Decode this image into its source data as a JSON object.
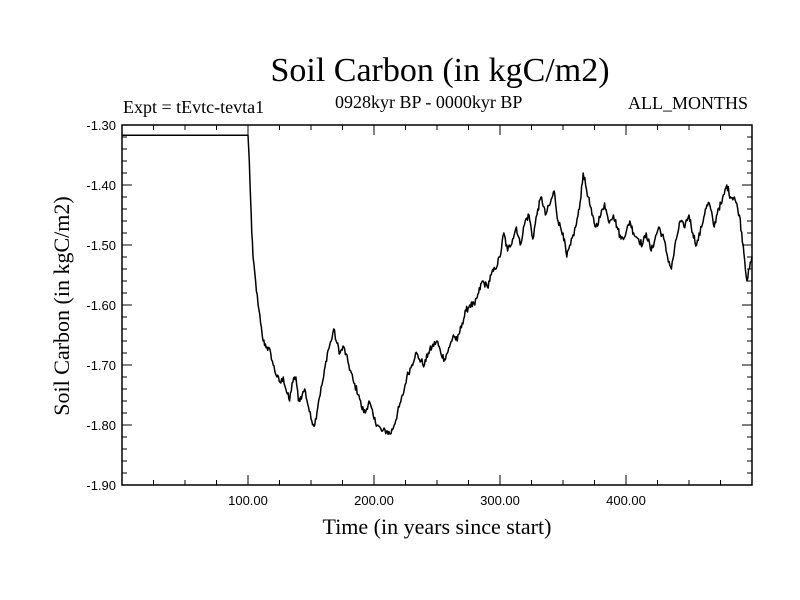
{
  "chart_data": {
    "type": "line",
    "title": "Soil Carbon (in kgC/m2)",
    "subtitle": "0928kyr BP - 0000kyr BP",
    "experiment": "Expt = tEvtc-tevta1",
    "months_label": "ALL_MONTHS",
    "xlabel": "Time (in years since start)",
    "ylabel": "Soil Carbon (in kgC/m2)",
    "xlim": [
      0,
      500
    ],
    "ylim": [
      -1.9,
      -1.3
    ],
    "x_ticks": [
      100,
      200,
      300,
      400
    ],
    "x_tick_labels": [
      "100.00",
      "200.00",
      "300.00",
      "400.00"
    ],
    "y_ticks": [
      -1.3,
      -1.4,
      -1.5,
      -1.6,
      -1.7,
      -1.8,
      -1.9
    ],
    "y_tick_labels": [
      "-1.30",
      "-1.40",
      "-1.50",
      "-1.60",
      "-1.70",
      "-1.80",
      "-1.90"
    ],
    "grid": false,
    "series": [
      {
        "name": "Soil Carbon",
        "color": "#000000",
        "x": [
          0,
          100,
          101,
          102,
          103,
          104,
          106,
          108,
          110,
          112,
          115,
          118,
          120,
          123,
          126,
          128,
          130,
          133,
          135,
          138,
          140,
          143,
          145,
          148,
          150,
          153,
          156,
          160,
          163,
          166,
          168,
          170,
          173,
          176,
          180,
          184,
          188,
          190,
          193,
          196,
          200,
          203,
          206,
          210,
          213,
          216,
          220,
          223,
          226,
          230,
          233,
          236,
          240,
          243,
          246,
          250,
          253,
          256,
          260,
          263,
          266,
          270,
          273,
          276,
          280,
          283,
          286,
          290,
          293,
          296,
          300,
          303,
          306,
          310,
          313,
          316,
          320,
          323,
          326,
          330,
          333,
          336,
          340,
          343,
          346,
          350,
          353,
          356,
          360,
          363,
          366,
          370,
          373,
          376,
          380,
          383,
          386,
          390,
          393,
          396,
          400,
          403,
          406,
          410,
          413,
          416,
          420,
          423,
          426,
          430,
          433,
          436,
          440,
          443,
          446,
          450,
          453,
          456,
          460,
          463,
          466,
          470,
          473,
          476,
          480,
          483,
          486,
          490,
          493,
          496,
          500
        ],
        "y": [
          -1.317,
          -1.317,
          -1.36,
          -1.42,
          -1.48,
          -1.52,
          -1.56,
          -1.6,
          -1.63,
          -1.66,
          -1.67,
          -1.68,
          -1.7,
          -1.72,
          -1.73,
          -1.72,
          -1.74,
          -1.76,
          -1.73,
          -1.72,
          -1.76,
          -1.75,
          -1.74,
          -1.77,
          -1.79,
          -1.8,
          -1.76,
          -1.72,
          -1.68,
          -1.66,
          -1.64,
          -1.66,
          -1.68,
          -1.67,
          -1.7,
          -1.73,
          -1.75,
          -1.77,
          -1.78,
          -1.76,
          -1.79,
          -1.8,
          -1.81,
          -1.81,
          -1.815,
          -1.8,
          -1.77,
          -1.75,
          -1.72,
          -1.7,
          -1.68,
          -1.69,
          -1.7,
          -1.68,
          -1.67,
          -1.66,
          -1.68,
          -1.69,
          -1.67,
          -1.65,
          -1.66,
          -1.63,
          -1.61,
          -1.6,
          -1.6,
          -1.58,
          -1.56,
          -1.57,
          -1.55,
          -1.54,
          -1.52,
          -1.48,
          -1.51,
          -1.49,
          -1.47,
          -1.5,
          -1.46,
          -1.45,
          -1.49,
          -1.44,
          -1.42,
          -1.45,
          -1.43,
          -1.41,
          -1.46,
          -1.48,
          -1.52,
          -1.5,
          -1.47,
          -1.44,
          -1.38,
          -1.42,
          -1.45,
          -1.47,
          -1.45,
          -1.43,
          -1.46,
          -1.45,
          -1.47,
          -1.49,
          -1.48,
          -1.46,
          -1.48,
          -1.49,
          -1.5,
          -1.48,
          -1.51,
          -1.49,
          -1.47,
          -1.49,
          -1.52,
          -1.54,
          -1.49,
          -1.46,
          -1.47,
          -1.45,
          -1.48,
          -1.5,
          -1.47,
          -1.44,
          -1.43,
          -1.47,
          -1.44,
          -1.43,
          -1.4,
          -1.42,
          -1.42,
          -1.45,
          -1.5,
          -1.56,
          -1.52
        ]
      }
    ]
  }
}
